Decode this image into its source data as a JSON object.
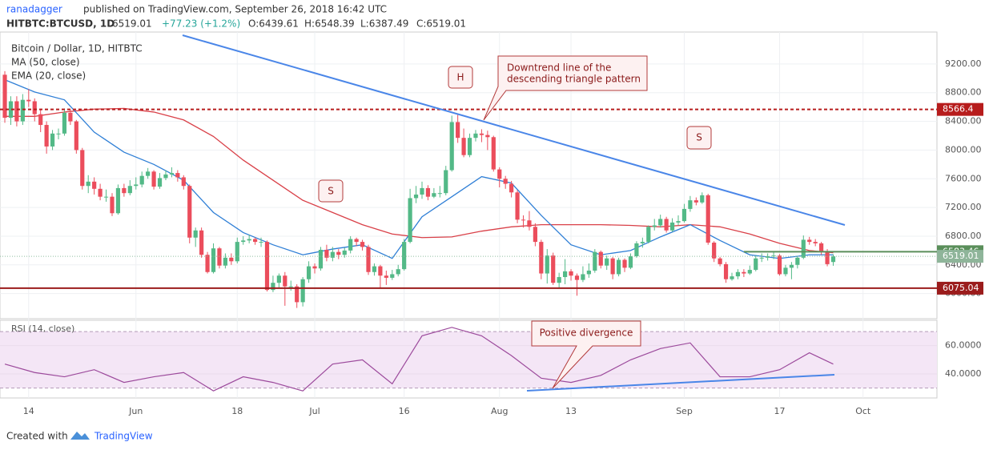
{
  "header": {
    "author": "ranadagger",
    "published": "published on TradingView.com, September 26, 2018 16:42 UTC",
    "symbol": "HITBTC:BTCUSD, 1D",
    "price": "6519.01",
    "change": "+77.23 (+1.2%)",
    "o": "O:6439.61",
    "h": "H:6548.39",
    "l": "L:6387.49",
    "c": "C:6519.01"
  },
  "footer": {
    "created": "Created with",
    "brand": "TradingView"
  },
  "annotations": {
    "head": "H",
    "shoulder_left": "S",
    "shoulder_right": "S",
    "downtrend": [
      "Downtrend line of the",
      "descending triangle pattern"
    ],
    "divergence": "Positive divergence"
  },
  "chart_data": [
    {
      "type": "candlestick",
      "title": "Bitcoin / Dollar, 1D, HITBTC",
      "up_color": "#53b987",
      "down_color": "#eb4d5c",
      "open": [
        9050,
        8450,
        8680,
        8400,
        8700,
        8680,
        8500,
        8350,
        8050,
        8230,
        8230,
        8520,
        8400,
        8000,
        7500,
        7560,
        7460,
        7350,
        7350,
        7120,
        7470,
        7400,
        7500,
        7520,
        7640,
        7700,
        7490,
        7610,
        7660,
        7680,
        7620,
        7500,
        6780,
        6880,
        6540,
        6300,
        6630,
        6390,
        6500,
        6450,
        6720,
        6740,
        6760,
        6720,
        6720,
        6050,
        6150,
        6250,
        6100,
        6100,
        5880,
        6200,
        6380,
        6350,
        6610,
        6500,
        6580,
        6540,
        6600,
        6760,
        6720,
        6650,
        6300,
        6380,
        6250,
        6220,
        6270,
        6340,
        6720,
        7330,
        7380,
        7470,
        7350,
        7400,
        7400,
        7720,
        8390,
        8170,
        7930,
        8170,
        8230,
        8210,
        8180,
        7730,
        7600,
        7530,
        7410,
        7030,
        7020,
        6930,
        6720,
        6280,
        6530,
        6150,
        6230,
        6310,
        6250,
        6190,
        6270,
        6320,
        6580,
        6390,
        6490,
        6270,
        6470,
        6360,
        6520,
        6700,
        6720,
        6930,
        6950,
        7040,
        6880,
        6990,
        7010,
        7180,
        7300,
        7270,
        7370,
        6710,
        6490,
        6410,
        6200,
        6240,
        6300,
        6280,
        6330,
        6490,
        6500,
        6520,
        6530,
        6270,
        6360,
        6400,
        6500,
        6750,
        6720,
        6700,
        6590,
        6439.61
      ],
      "high": [
        9100,
        8750,
        8750,
        8780,
        8850,
        8720,
        8560,
        8400,
        8280,
        8300,
        8580,
        8560,
        8420,
        8030,
        7650,
        7620,
        7530,
        7450,
        7400,
        7520,
        7530,
        7580,
        7620,
        7700,
        7750,
        7720,
        7680,
        7720,
        7760,
        7720,
        7650,
        7520,
        6920,
        6920,
        6580,
        6700,
        6650,
        6560,
        6560,
        6780,
        6800,
        6820,
        6780,
        6780,
        6740,
        6250,
        6280,
        6300,
        6180,
        6130,
        6230,
        6450,
        6420,
        6650,
        6680,
        6650,
        6620,
        6640,
        6800,
        6780,
        6750,
        6680,
        6420,
        6400,
        6320,
        6330,
        6400,
        6760,
        7460,
        7500,
        7560,
        7510,
        7470,
        7500,
        7780,
        8480,
        8490,
        8300,
        8230,
        8280,
        8290,
        8270,
        8200,
        7760,
        7640,
        7570,
        7440,
        7090,
        7150,
        6980,
        6750,
        6620,
        6570,
        6290,
        6480,
        6340,
        6280,
        6380,
        6420,
        6620,
        6600,
        6530,
        6510,
        6500,
        6490,
        6560,
        6730,
        6780,
        6950,
        7040,
        7100,
        7070,
        7050,
        7090,
        7250,
        7360,
        7340,
        7410,
        7390,
        6730,
        6510,
        6440,
        6290,
        6340,
        6340,
        6390,
        6530,
        6560,
        6560,
        6580,
        6550,
        6400,
        6440,
        6520,
        6810,
        6790,
        6760,
        6720,
        6620,
        6548.39
      ],
      "low": [
        8380,
        8350,
        8330,
        8350,
        8600,
        8400,
        8250,
        7950,
        8000,
        8150,
        8200,
        8350,
        7950,
        7450,
        7400,
        7380,
        7300,
        7280,
        7080,
        7100,
        7350,
        7370,
        7450,
        7480,
        7600,
        7450,
        7460,
        7580,
        7620,
        7560,
        7450,
        6700,
        6650,
        6500,
        6280,
        6280,
        6350,
        6350,
        6400,
        6420,
        6680,
        6700,
        6680,
        6650,
        6030,
        6020,
        6080,
        5830,
        6040,
        5800,
        5820,
        6150,
        6280,
        6320,
        6450,
        6450,
        6480,
        6500,
        6560,
        6660,
        6600,
        6260,
        6250,
        6080,
        6120,
        6190,
        6240,
        6320,
        6700,
        7260,
        7320,
        7300,
        7330,
        7340,
        7370,
        7700,
        8100,
        7900,
        7900,
        8120,
        8110,
        8000,
        7700,
        7480,
        7460,
        7340,
        6980,
        6920,
        6880,
        6660,
        6200,
        6140,
        6120,
        6080,
        6130,
        6180,
        5970,
        6160,
        6220,
        6290,
        6350,
        6330,
        6200,
        6240,
        6300,
        6340,
        6500,
        6640,
        6700,
        6880,
        6920,
        6850,
        6860,
        6950,
        6990,
        7140,
        7230,
        7250,
        6680,
        6440,
        6380,
        6150,
        6180,
        6200,
        6230,
        6260,
        6310,
        6440,
        6460,
        6480,
        6250,
        6240,
        6200,
        6350,
        6480,
        6680,
        6660,
        6540,
        6380,
        6387.49
      ],
      "close": [
        8450,
        8680,
        8400,
        8700,
        8680,
        8500,
        8350,
        8050,
        8230,
        8230,
        8520,
        8400,
        8000,
        7500,
        7560,
        7460,
        7350,
        7350,
        7120,
        7470,
        7400,
        7500,
        7520,
        7640,
        7700,
        7490,
        7610,
        7660,
        7680,
        7620,
        7500,
        6780,
        6880,
        6540,
        6300,
        6630,
        6390,
        6500,
        6450,
        6720,
        6740,
        6760,
        6720,
        6720,
        6050,
        6150,
        6250,
        6100,
        6100,
        5880,
        6200,
        6380,
        6350,
        6610,
        6500,
        6580,
        6540,
        6600,
        6760,
        6720,
        6650,
        6300,
        6380,
        6250,
        6220,
        6270,
        6340,
        6720,
        7330,
        7380,
        7470,
        7350,
        7400,
        7400,
        7720,
        8390,
        8170,
        7930,
        8170,
        8230,
        8210,
        8180,
        7730,
        7600,
        7530,
        7410,
        7030,
        7020,
        6930,
        6720,
        6280,
        6530,
        6150,
        6230,
        6310,
        6250,
        6190,
        6270,
        6320,
        6580,
        6390,
        6490,
        6270,
        6470,
        6360,
        6520,
        6700,
        6720,
        6930,
        6950,
        7040,
        6880,
        6990,
        7010,
        7180,
        7300,
        7270,
        7370,
        6710,
        6490,
        6410,
        6200,
        6240,
        6300,
        6280,
        6330,
        6490,
        6500,
        6520,
        6530,
        6270,
        6360,
        6400,
        6500,
        6750,
        6720,
        6700,
        6590,
        6410,
        6519.01
      ],
      "series": [
        {
          "name": "MA (50, close)",
          "color": "#d94048",
          "x": [
            0,
            5,
            10,
            15,
            20,
            25,
            30,
            35,
            40,
            45,
            50,
            55,
            60,
            65,
            70,
            75,
            80,
            85,
            90,
            95,
            100,
            105,
            110,
            115,
            120,
            125,
            130,
            135,
            139
          ],
          "values": [
            8470,
            8470,
            8530,
            8570,
            8580,
            8530,
            8420,
            8190,
            7860,
            7580,
            7300,
            7130,
            6960,
            6830,
            6780,
            6790,
            6870,
            6930,
            6960,
            6960,
            6960,
            6950,
            6930,
            6960,
            6930,
            6830,
            6700,
            6600,
            6570
          ]
        },
        {
          "name": "EMA (20, close)",
          "color": "#2f7fd6",
          "x": [
            0,
            5,
            10,
            15,
            20,
            25,
            30,
            35,
            40,
            45,
            50,
            55,
            60,
            65,
            70,
            75,
            80,
            85,
            90,
            95,
            100,
            105,
            110,
            115,
            120,
            125,
            130,
            135,
            139
          ],
          "values": [
            8980,
            8810,
            8700,
            8250,
            7970,
            7800,
            7580,
            7130,
            6850,
            6680,
            6540,
            6620,
            6680,
            6490,
            7070,
            7350,
            7630,
            7540,
            7090,
            6680,
            6540,
            6600,
            6790,
            6960,
            6740,
            6540,
            6490,
            6540,
            6540
          ]
        }
      ],
      "levels": [
        {
          "value": 8566.4,
          "color": "#b71c1c",
          "dashed": true
        },
        {
          "value": 6075.04,
          "color": "#9b1c1c",
          "dashed": false
        },
        {
          "value": 6583.46,
          "color": "#5a8f5a",
          "dashed": false,
          "from": 124
        }
      ],
      "last_price": 6519.01,
      "xlim": [
        -0.81,
        156.4
      ],
      "xticks": [
        {
          "value": 4,
          "label": "14"
        },
        {
          "value": 22,
          "label": "Jun"
        },
        {
          "value": 39,
          "label": "18"
        },
        {
          "value": 52,
          "label": "Jul"
        },
        {
          "value": 67,
          "label": "16"
        },
        {
          "value": 83,
          "label": "Aug"
        },
        {
          "value": 95,
          "label": "13"
        },
        {
          "value": 114,
          "label": "Sep"
        },
        {
          "value": 130,
          "label": "17"
        },
        {
          "value": 144,
          "label": "Oct"
        }
      ],
      "ylim": [
        5650,
        9645
      ],
      "yticks": [
        {
          "value": 6000,
          "label": "6000.00"
        },
        {
          "value": 6400,
          "label": "6400.00"
        },
        {
          "value": 6800,
          "label": "6800.00"
        },
        {
          "value": 7200,
          "label": "7200.00"
        },
        {
          "value": 7600,
          "label": "7600.00"
        },
        {
          "value": 8000,
          "label": "8000.00"
        },
        {
          "value": 8400,
          "label": "8400.00"
        },
        {
          "value": 8800,
          "label": "8800.00"
        },
        {
          "value": 9200,
          "label": "9200.00"
        }
      ]
    },
    {
      "type": "line",
      "title": "RSI (14, close)",
      "color": "#9c4a9c",
      "band": [
        30,
        70
      ],
      "x": [
        0,
        5,
        10,
        15,
        20,
        25,
        30,
        35,
        40,
        45,
        50,
        55,
        60,
        65,
        70,
        75,
        80,
        85,
        90,
        95,
        100,
        105,
        110,
        115,
        120,
        125,
        130,
        135,
        139
      ],
      "values": [
        47,
        41,
        38,
        43,
        34,
        38,
        41,
        28,
        38,
        34,
        28,
        47,
        50,
        33,
        67,
        73,
        67,
        53,
        37,
        34,
        39,
        50,
        58,
        62,
        38,
        38,
        43,
        55,
        47
      ],
      "xlim": [
        -0.81,
        156.4
      ],
      "ylim": [
        23,
        78
      ],
      "yticks": [
        {
          "value": 40,
          "label": "40.0000"
        },
        {
          "value": 60,
          "label": "60.0000"
        }
      ]
    }
  ]
}
